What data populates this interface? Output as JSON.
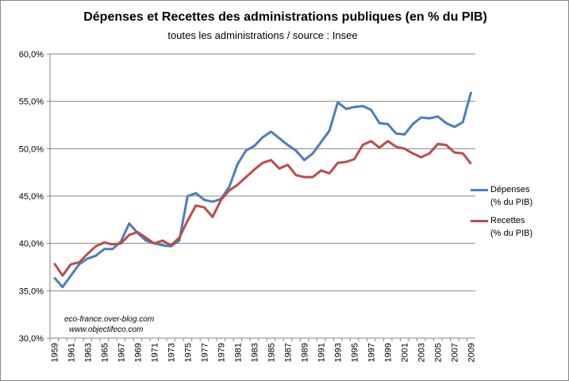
{
  "chart_data": {
    "type": "line",
    "title": "Dépenses et Recettes des administrations publiques (en % du PIB)",
    "subtitle": "toutes les administrations / source : Insee",
    "xlabel": "",
    "ylabel": "",
    "ylim": [
      30,
      60
    ],
    "yticks": [
      "30,0%",
      "35,0%",
      "40,0%",
      "45,0%",
      "50,0%",
      "55,0%",
      "60,0%"
    ],
    "ytick_values": [
      30,
      35,
      40,
      45,
      50,
      55,
      60
    ],
    "x": [
      1959,
      1960,
      1961,
      1962,
      1963,
      1964,
      1965,
      1966,
      1967,
      1968,
      1969,
      1970,
      1971,
      1972,
      1973,
      1974,
      1975,
      1976,
      1977,
      1978,
      1979,
      1980,
      1981,
      1982,
      1983,
      1984,
      1985,
      1986,
      1987,
      1988,
      1989,
      1990,
      1991,
      1992,
      1993,
      1994,
      1995,
      1996,
      1997,
      1998,
      1999,
      2000,
      2001,
      2002,
      2003,
      2004,
      2005,
      2006,
      2007,
      2008,
      2009
    ],
    "xticks": [
      "1959",
      "1961",
      "1963",
      "1965",
      "1967",
      "1969",
      "1971",
      "1973",
      "1975",
      "1977",
      "1979",
      "1981",
      "1983",
      "1985",
      "1987",
      "1989",
      "1991",
      "1993",
      "1995",
      "1997",
      "1999",
      "2001",
      "2003",
      "2005",
      "2007",
      "2009"
    ],
    "grid": true,
    "legend_position": "right",
    "series": [
      {
        "name": "Dépenses",
        "name2": "(% du PIB)",
        "color": "#4a7ebb",
        "values": [
          36.4,
          35.4,
          36.6,
          37.8,
          38.4,
          38.7,
          39.4,
          39.4,
          40.2,
          42.1,
          41.1,
          40.3,
          40.0,
          39.8,
          39.7,
          40.3,
          45.0,
          45.3,
          44.6,
          44.4,
          44.7,
          46.0,
          48.4,
          49.8,
          50.3,
          51.2,
          51.8,
          51.1,
          50.4,
          49.8,
          48.8,
          49.5,
          50.7,
          51.9,
          54.9,
          54.2,
          54.4,
          54.5,
          54.1,
          52.7,
          52.6,
          51.6,
          51.5,
          52.6,
          53.3,
          53.2,
          53.4,
          52.7,
          52.3,
          52.8,
          56.0
        ]
      },
      {
        "name": "Recettes",
        "name2": "(% du PIB)",
        "color": "#be4b48",
        "values": [
          37.9,
          36.6,
          37.8,
          38.0,
          38.9,
          39.7,
          40.1,
          39.9,
          40.0,
          40.9,
          41.2,
          40.6,
          40.0,
          40.3,
          39.8,
          40.6,
          42.4,
          44.0,
          43.8,
          42.8,
          44.6,
          45.6,
          46.2,
          47.0,
          47.8,
          48.5,
          48.8,
          47.9,
          48.3,
          47.2,
          47.0,
          47.0,
          47.7,
          47.4,
          48.5,
          48.6,
          48.9,
          50.4,
          50.8,
          50.1,
          50.8,
          50.2,
          50.0,
          49.5,
          49.1,
          49.5,
          50.5,
          50.4,
          49.6,
          49.5,
          48.4
        ]
      }
    ],
    "annotations": [
      "eco-france.over-blog.com",
      "www.objectifeco.com"
    ]
  }
}
